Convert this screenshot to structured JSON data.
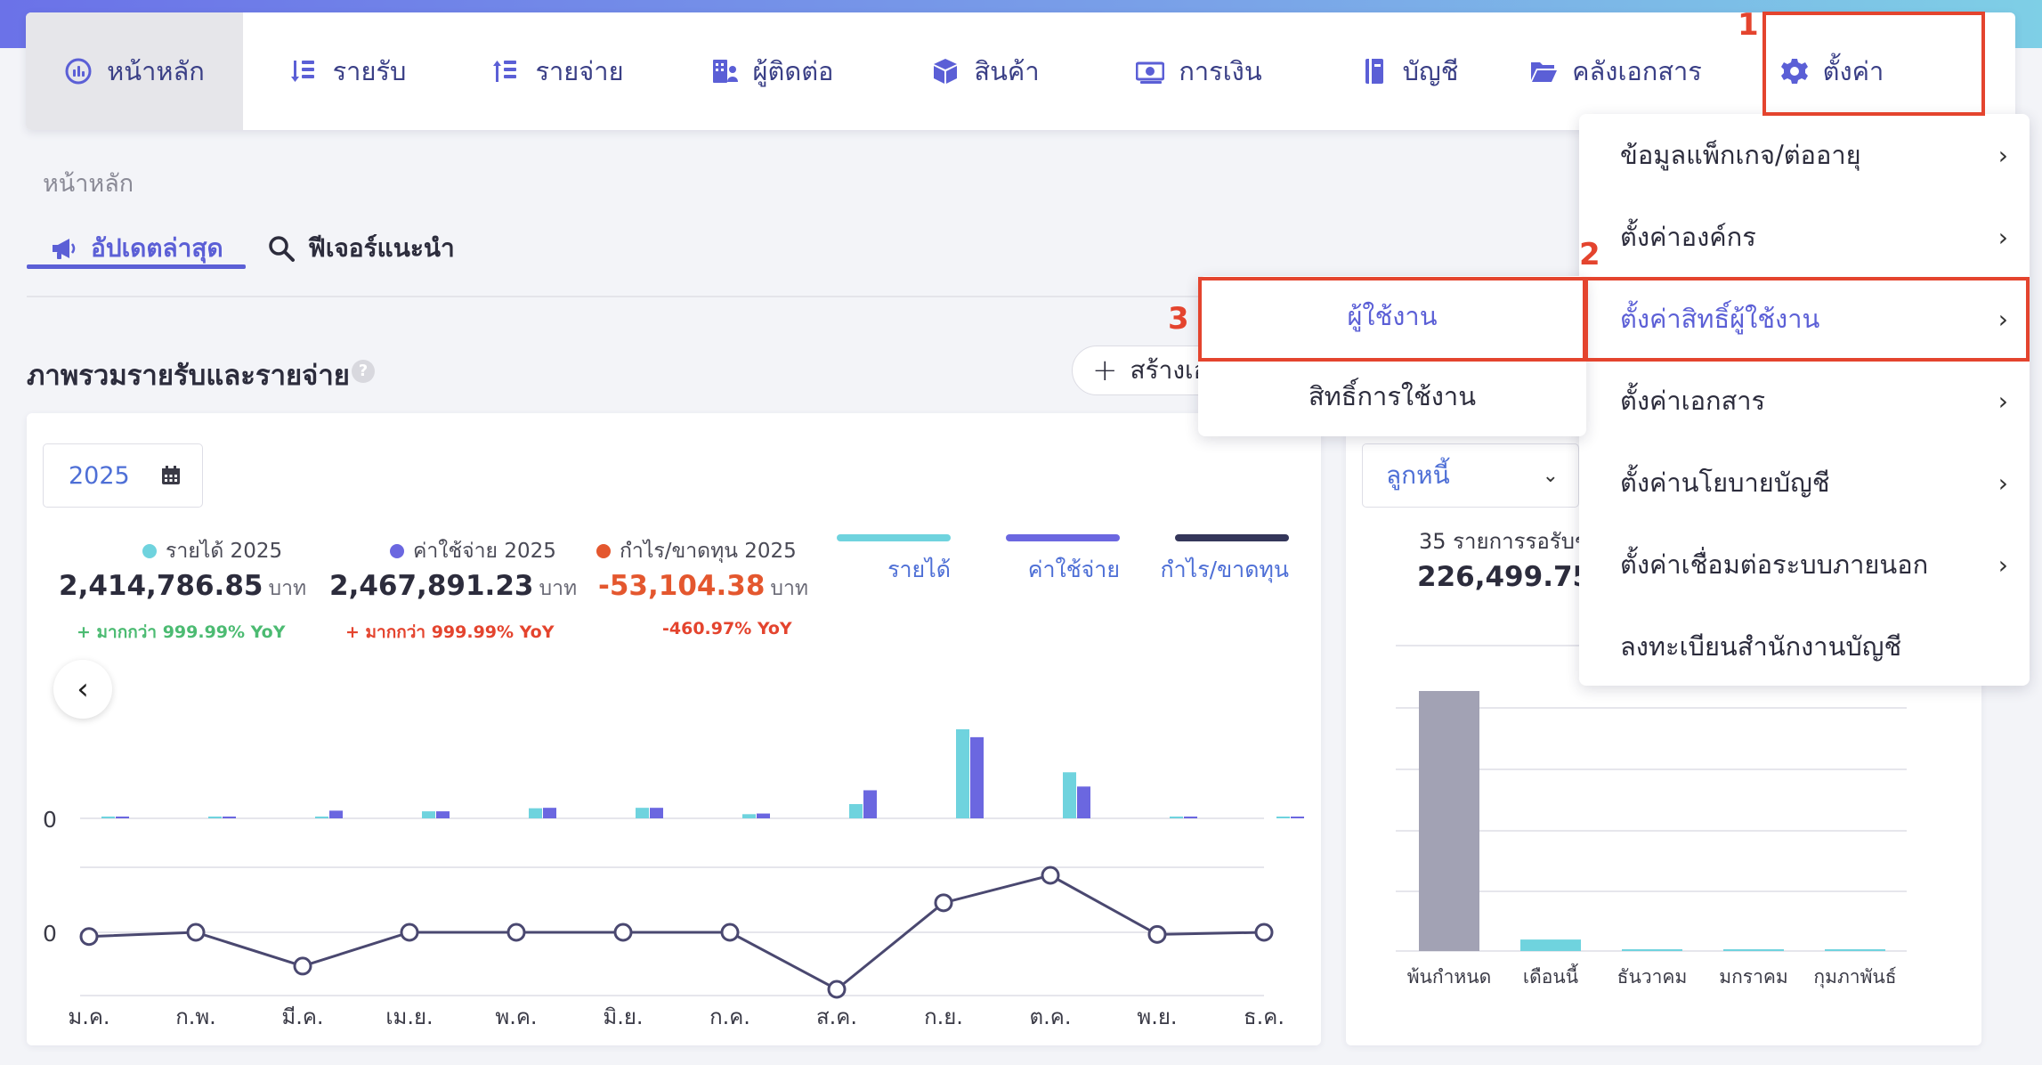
{
  "nav": {
    "items": [
      {
        "label": "หน้าหลัก",
        "icon": "dashboard-gauge-icon",
        "active": true
      },
      {
        "label": "รายรับ",
        "icon": "income-sort-icon"
      },
      {
        "label": "รายจ่าย",
        "icon": "expense-sort-icon"
      },
      {
        "label": "ผู้ติดต่อ",
        "icon": "contacts-building-icon"
      },
      {
        "label": "สินค้า",
        "icon": "product-box-icon"
      },
      {
        "label": "การเงิน",
        "icon": "money-bill-icon"
      },
      {
        "label": "บัญชี",
        "icon": "account-book-icon"
      },
      {
        "label": "คลังเอกสาร",
        "icon": "folder-open-icon"
      },
      {
        "label": "ตั้งค่า",
        "icon": "gear-icon"
      }
    ]
  },
  "annotations": {
    "step1": "1",
    "step2": "2",
    "step3": "3",
    "color": "#e4442e"
  },
  "breadcrumb": "หน้าหลัก",
  "tabs": [
    {
      "label": "อัปเดตล่าสุด",
      "icon": "megaphone-icon",
      "active": true
    },
    {
      "label": "ฟีเจอร์แนะนำ",
      "icon": "search-icon"
    }
  ],
  "overview": {
    "title": "ภาพรวมรายรับและรายจ่าย",
    "help": "?",
    "create_button": "สร้างเอ",
    "year": "2025",
    "stats": [
      {
        "label": "รายได้ 2025",
        "value": "2,414,786.85",
        "unit": "บาท",
        "yoy": "+ มากกว่า 999.99% YoY",
        "color": "#6fd3de",
        "yoy_color": "#4cbb72"
      },
      {
        "label": "ค่าใช้จ่าย 2025",
        "value": "2,467,891.23",
        "unit": "บาท",
        "yoy": "+ มากกว่า 999.99% YoY",
        "color": "#6b67e0",
        "yoy_color": "#e4442e"
      },
      {
        "label": "กำไร/ขาดทุน 2025",
        "value": "-53,104.38",
        "unit": "บาท",
        "yoy": "-460.97% YoY",
        "color": "#e4572e",
        "yoy_color": "#e4442e"
      }
    ],
    "legend": [
      {
        "label": "รายได้",
        "color": "#6fd3de"
      },
      {
        "label": "ค่าใช้จ่าย",
        "color": "#6b67e0"
      },
      {
        "label": "กำไร/ขาดทุน",
        "color": "#34365a"
      }
    ]
  },
  "chart_data": [
    {
      "type": "bar",
      "categories": [
        "ม.ค.",
        "ก.พ.",
        "มี.ค.",
        "เม.ย.",
        "พ.ค.",
        "มิ.ย.",
        "ก.ค.",
        "ส.ค.",
        "ก.ย.",
        "ต.ค.",
        "พ.ย.",
        "ธ.ค."
      ],
      "series": [
        {
          "name": "รายได้",
          "color": "#6fd3de",
          "values": [
            0.5,
            0.6,
            0.2,
            3.2,
            4.6,
            4.8,
            1.9,
            6.5,
            40.6,
            21.0,
            0.3,
            0.2
          ]
        },
        {
          "name": "ค่าใช้จ่าย",
          "color": "#6b67e0",
          "values": [
            0.4,
            0.5,
            3.5,
            3.2,
            4.8,
            4.8,
            2.2,
            12.8,
            37.0,
            14.5,
            0.2,
            0.4
          ]
        }
      ],
      "ylabel_zero": "0",
      "ylim": [
        0,
        45
      ]
    },
    {
      "type": "line",
      "categories": [
        "ม.ค.",
        "ก.พ.",
        "มี.ค.",
        "เม.ย.",
        "พ.ค.",
        "มิ.ย.",
        "ก.ค.",
        "ส.ค.",
        "ก.ย.",
        "ต.ค.",
        "พ.ย.",
        "ธ.ค."
      ],
      "series": [
        {
          "name": "กำไร/ขาดทุน",
          "color": "#4a4870",
          "values": [
            -0.1,
            0.0,
            -0.8,
            0.0,
            0.0,
            0.0,
            0.0,
            -1.35,
            0.7,
            1.35,
            -0.05,
            0.0
          ]
        }
      ],
      "ylabel_zero": "0",
      "ylim": [
        -1.6,
        1.6
      ]
    },
    {
      "type": "bar",
      "categories": [
        "พ้นกำหนด",
        "เดือนนี้",
        "ธันวาคม",
        "มกราคม",
        "กุมภาพันธ์"
      ],
      "series": [
        {
          "name": "ลูกหนี้",
          "values": [
            215000,
            9500,
            500,
            500,
            500
          ],
          "colors": [
            "#a2a2b4",
            "#6fd3de",
            "#6fd3de",
            "#6fd3de",
            "#6fd3de"
          ]
        }
      ],
      "ylim": [
        0,
        260000
      ]
    }
  ],
  "receivables": {
    "select_value": "ลูกหนี้",
    "count_text": "35 รายการรอรับช",
    "amount": "226,499.75",
    "unit_frag": "บ"
  },
  "settings_menu": {
    "items": [
      {
        "label": "ข้อมูลแพ็กเกจ/ต่ออายุ",
        "arrow": "›"
      },
      {
        "label": "ตั้งค่าองค์กร",
        "arrow": "›"
      },
      {
        "label": "ตั้งค่าสิทธิ์ผู้ใช้งาน",
        "arrow": "›",
        "selected": true
      },
      {
        "label": "ตั้งค่าเอกสาร",
        "arrow": "›"
      },
      {
        "label": "ตั้งค่านโยบายบัญชี",
        "arrow": "›"
      },
      {
        "label": "ตั้งค่าเชื่อมต่อระบบภายนอก",
        "arrow": "›"
      },
      {
        "label": "ลงทะเบียนสำนักงานบัญชี",
        "arrow": ""
      }
    ],
    "submenu": [
      {
        "label": "ผู้ใช้งาน",
        "selected": true
      },
      {
        "label": "สิทธิ์การใช้งาน"
      }
    ]
  }
}
